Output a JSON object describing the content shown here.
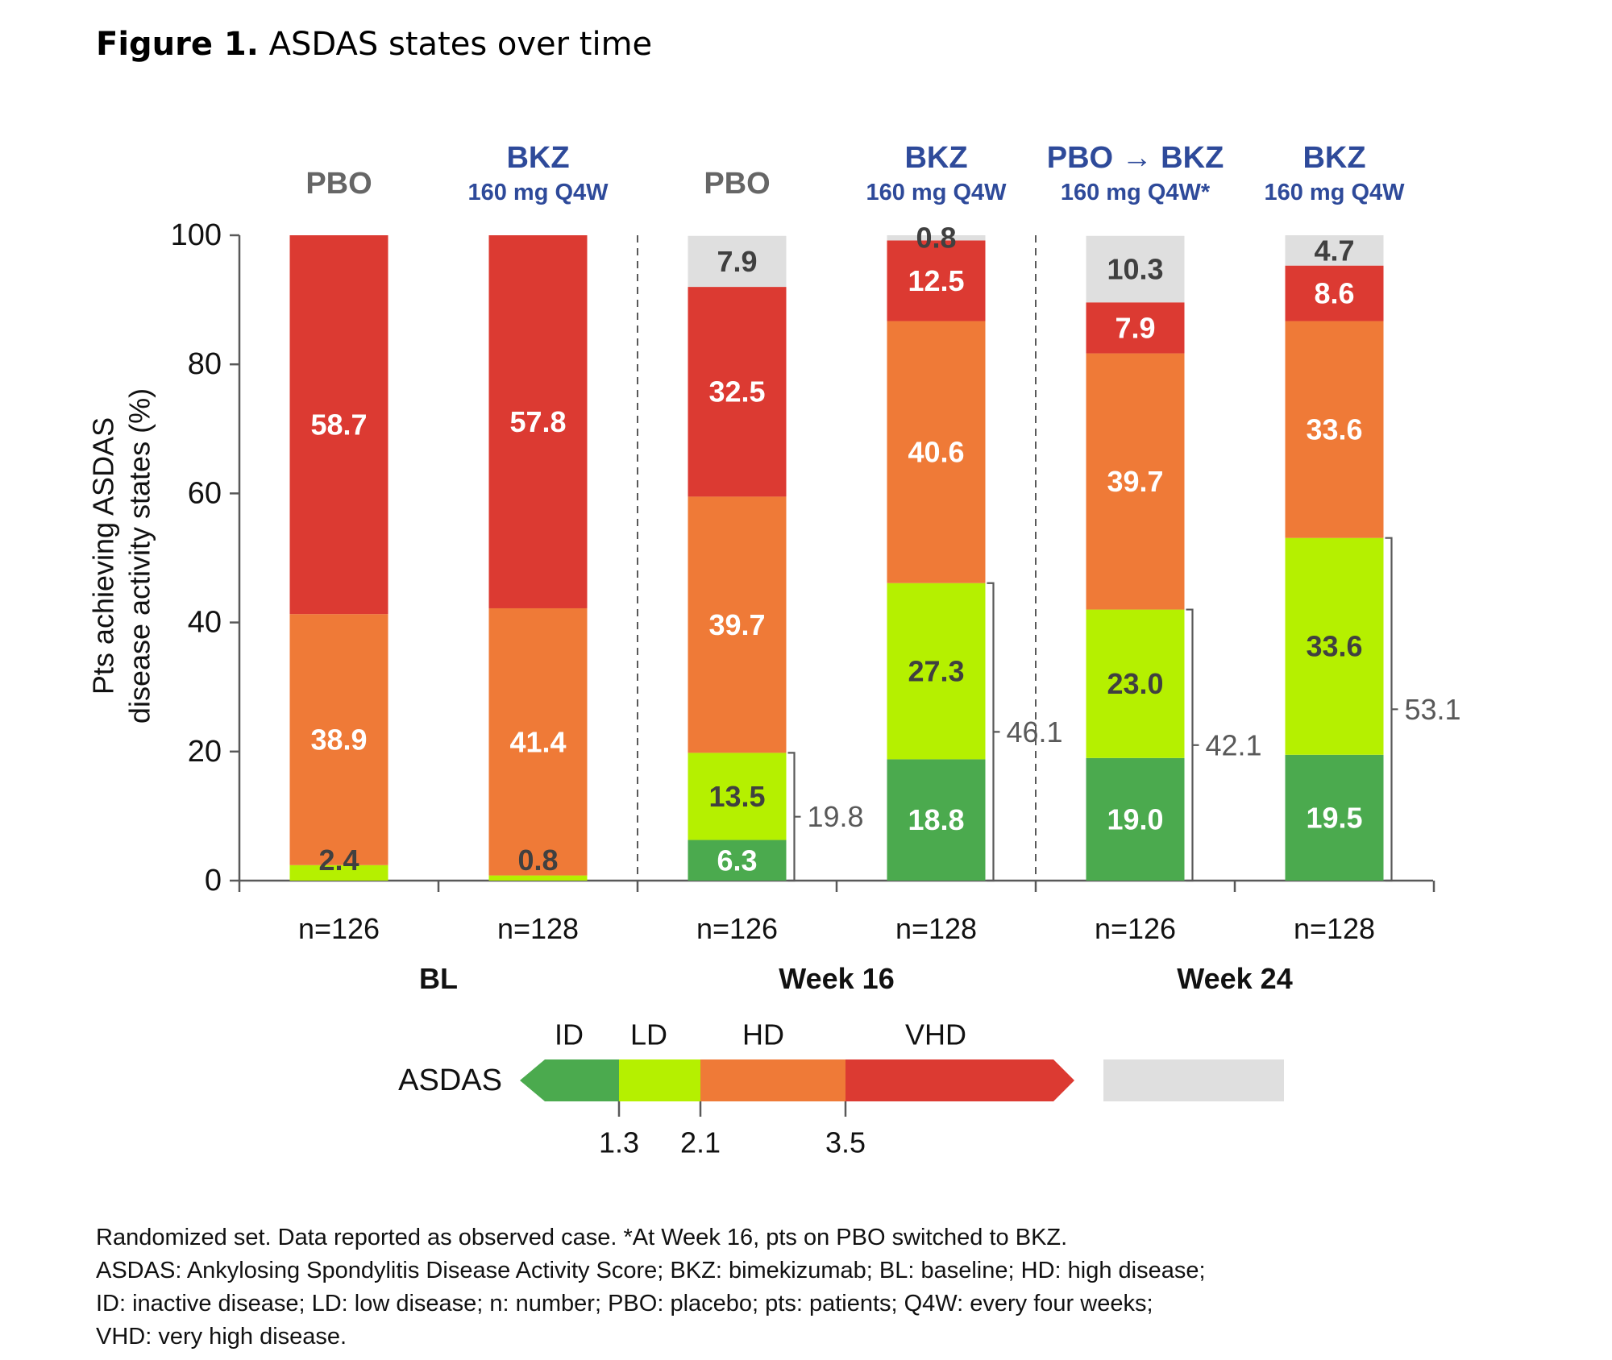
{
  "title": {
    "prefix": "Figure 1.",
    "text": " ASDAS states over time"
  },
  "chart_data": {
    "type": "bar",
    "stacked": true,
    "ylabel_lines": [
      "Pts achieving ASDAS",
      "disease activity states (%)"
    ],
    "ylim": [
      0,
      100
    ],
    "yticks": [
      "0",
      "20",
      "40",
      "60",
      "80",
      "100"
    ],
    "grid": false,
    "groups": [
      {
        "label": "BL",
        "bars": [
          0,
          1
        ]
      },
      {
        "label": "Week 16",
        "bars": [
          2,
          3
        ]
      },
      {
        "label": "Week 24",
        "bars": [
          4,
          5
        ]
      }
    ],
    "bars": [
      {
        "header": "PBO",
        "subheader": "",
        "header_color": "#666666",
        "n": "n=126",
        "values": [
          0,
          2.4,
          38.9,
          58.7,
          0
        ],
        "labels": [
          "",
          "2.4",
          "38.9",
          "58.7",
          ""
        ],
        "total": ""
      },
      {
        "header": "BKZ",
        "subheader": "160 mg Q4W",
        "header_color": "#2E4A9A",
        "n": "n=128",
        "values": [
          0,
          0.8,
          41.4,
          57.8,
          0
        ],
        "labels": [
          "",
          "0.8",
          "41.4",
          "57.8",
          ""
        ],
        "total": ""
      },
      {
        "header": "PBO",
        "subheader": "",
        "header_color": "#666666",
        "n": "n=126",
        "values": [
          6.3,
          13.5,
          39.7,
          32.5,
          7.9
        ],
        "labels": [
          "6.3",
          "13.5",
          "39.7",
          "32.5",
          "7.9"
        ],
        "total": "19.8"
      },
      {
        "header": "BKZ",
        "subheader": "160 mg Q4W",
        "header_color": "#2E4A9A",
        "n": "n=128",
        "values": [
          18.8,
          27.3,
          40.6,
          12.5,
          0.8
        ],
        "labels": [
          "18.8",
          "27.3",
          "40.6",
          "12.5",
          "0.8"
        ],
        "total": "46.1"
      },
      {
        "header": "PBO → BKZ",
        "subheader": "160 mg Q4W*",
        "header_color": "#2E4A9A",
        "n": "n=126",
        "values": [
          19.0,
          23.0,
          39.7,
          7.9,
          10.3
        ],
        "labels": [
          "19.0",
          "23.0",
          "39.7",
          "7.9",
          "10.3"
        ],
        "total": "42.1"
      },
      {
        "header": "BKZ",
        "subheader": "160 mg Q4W",
        "header_color": "#2E4A9A",
        "n": "n=128",
        "values": [
          19.5,
          33.6,
          33.6,
          8.6,
          4.7
        ],
        "labels": [
          "19.5",
          "33.6",
          "33.6",
          "8.6",
          "4.7"
        ],
        "total": "53.1"
      }
    ],
    "series": [
      {
        "name": "ID",
        "color": "#4BAA4E",
        "label_color": "#FFFFFF"
      },
      {
        "name": "LD",
        "color": "#B5F000",
        "label_color": "#404040"
      },
      {
        "name": "HD",
        "color": "#EF7A37",
        "label_color": "#FFFFFF"
      },
      {
        "name": "VHD",
        "color": "#DC3A32",
        "label_color": "#FFFFFF"
      },
      {
        "name": "",
        "color": "#DFDFDF",
        "label_color": "#404040"
      }
    ],
    "legend": {
      "title": "ASDAS",
      "cutoffs": [
        "1.3",
        "2.1",
        "3.5"
      ]
    }
  },
  "footnote": [
    "Randomized set. Data reported as observed case. *At Week 16, pts on PBO switched to BKZ.",
    "ASDAS: Ankylosing Spondylitis Disease Activity Score; BKZ: bimekizumab; BL: baseline; HD: high disease;",
    "ID: inactive disease; LD: low disease; n: number; PBO: placebo; pts: patients; Q4W: every four weeks;",
    "VHD: very high disease."
  ]
}
